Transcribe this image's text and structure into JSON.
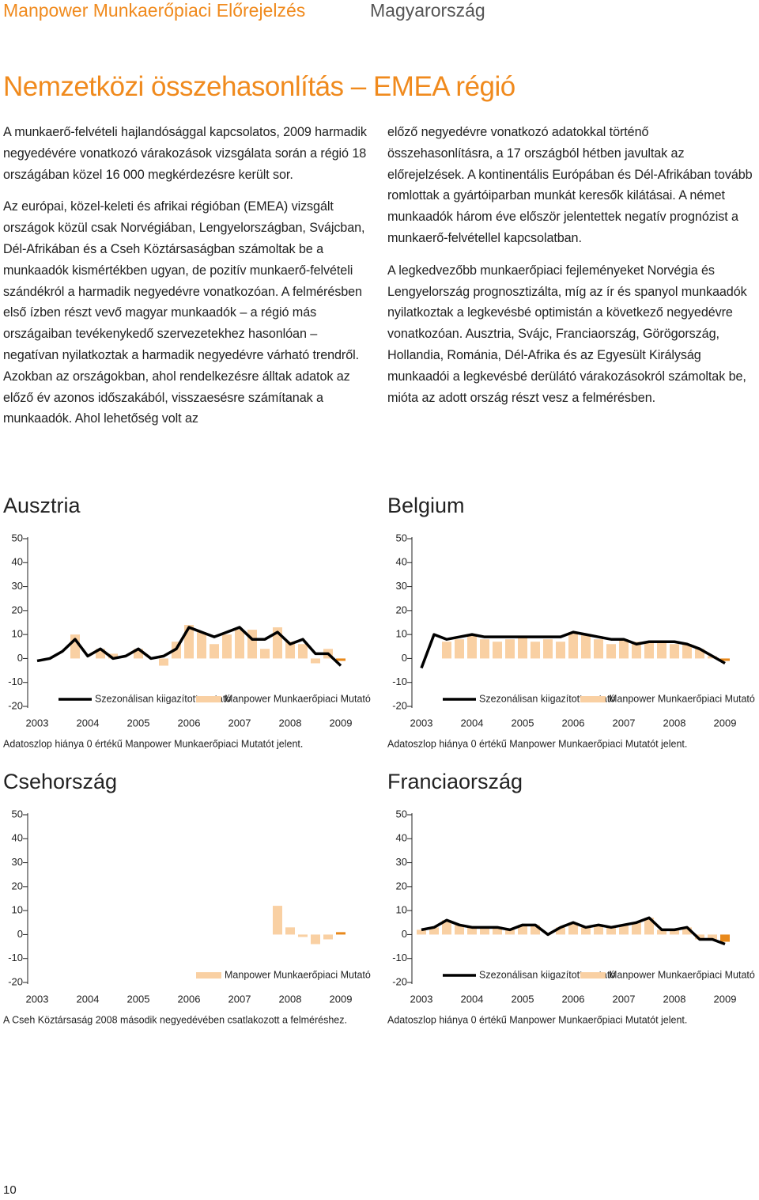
{
  "header": {
    "brand": "Manpower Munkaerőpiaci Előrejelzés",
    "country": "Magyarország"
  },
  "title": "Nemzetközi összehasonlítás – EMEA régió",
  "left_paragraphs": [
    "A munkaerő-felvételi hajlandósággal kapcsolatos, 2009 harmadik negyedévére vonatkozó várakozások vizsgálata során a régió 18 országában közel 16 000 megkérdezésre került sor.",
    "Az európai, közel-keleti és afrikai régióban (EMEA) vizsgált országok közül csak Norvégiában, Lengyelországban, Svájcban, Dél-Afrikában és a Cseh Köztársaságban számoltak be a munkaadók kismértékben ugyan, de pozitív munkaerő-felvételi szándékról a harmadik negyedévre vonatkozóan. A felmérésben első ízben részt vevő magyar munkaadók – a régió más országaiban tevékenykedő szervezetekhez hasonlóan – negatívan nyilatkoztak a harmadik negyedévre várható trendről. Azokban az országokban, ahol rendelkezésre álltak adatok az előző év azonos időszakából, visszaesésre számítanak a munkaadók. Ahol lehetőség volt az"
  ],
  "right_paragraphs": [
    "előző negyedévre vonatkozó adatokkal történő összehasonlításra, a 17 országból hétben javultak az előrejelzések. A kontinentális Európában és Dél-Afrikában tovább romlottak a gyártóiparban munkát keresők kilátásai. A német munkaadók három éve először jelentettek negatív prognózist a munkaerő-felvétellel kapcsolatban.",
    "A legkedvezőbb munkaerőpiaci fejleményeket Norvégia és Lengyelország prognosztizálta, míg az ír és spanyol munkaadók nyilatkoztak a legkevésbé optimistán a következő negyedévre vonatkozóan. Ausztria, Svájc, Franciaország, Görögország, Hollandia, Románia, Dél-Afrika és az Egyesült Királyság munkaadói a legkevésbé derülátó várakozásokról számoltak be, mióta az adott ország részt vesz a felmérésben."
  ],
  "chart_data": [
    {
      "type": "bar_line",
      "title": "Ausztria",
      "x": [
        2003,
        2003.25,
        2003.5,
        2003.75,
        2004,
        2004.25,
        2004.5,
        2004.75,
        2005,
        2005.25,
        2005.5,
        2005.75,
        2006,
        2006.25,
        2006.5,
        2006.75,
        2007,
        2007.25,
        2007.5,
        2007.75,
        2008,
        2008.25,
        2008.5,
        2008.75,
        2009
      ],
      "series": [
        {
          "name": "Szezonálisan kiigazított mutató",
          "kind": "line",
          "color": "#000000",
          "values": [
            -1,
            0,
            3,
            8,
            1,
            4,
            0,
            1,
            4,
            0,
            1,
            4,
            13,
            11,
            9,
            11,
            13,
            8,
            8,
            11,
            6,
            8,
            2,
            2,
            -3
          ]
        },
        {
          "name": "Manpower Munkaerőpiaci Mutató",
          "kind": "bar",
          "color": "#f9d0a3",
          "highlight_color": "#e8891c",
          "values": [
            0,
            0,
            0,
            10,
            0,
            4,
            2,
            0,
            4,
            0,
            -3,
            7,
            14,
            11,
            6,
            10,
            12,
            12,
            4,
            13,
            7,
            6,
            -2,
            4,
            -1
          ]
        }
      ],
      "xlim": [
        2003,
        2009
      ],
      "xticks": [
        2003,
        2004,
        2005,
        2006,
        2007,
        2008,
        2009
      ],
      "ylim": [
        -20,
        50
      ],
      "yticks": [
        -20,
        -10,
        0,
        10,
        20,
        30,
        40,
        50
      ],
      "grid": false,
      "highlight_last": true,
      "note": "Adatoszlop hiánya 0 értékű Manpower Munkaerőpiaci Mutatót jelent."
    },
    {
      "type": "bar_line",
      "title": "Belgium",
      "x": [
        2003,
        2003.25,
        2003.5,
        2003.75,
        2004,
        2004.25,
        2004.5,
        2004.75,
        2005,
        2005.25,
        2005.5,
        2005.75,
        2006,
        2006.25,
        2006.5,
        2006.75,
        2007,
        2007.25,
        2007.5,
        2007.75,
        2008,
        2008.25,
        2008.5,
        2008.75,
        2009
      ],
      "series": [
        {
          "name": "Szezonálisan kiigazított mutató",
          "kind": "line",
          "color": "#000000",
          "values": [
            -4,
            10,
            8,
            9,
            10,
            9,
            9,
            9,
            9,
            9,
            9,
            9,
            11,
            10,
            9,
            8,
            8,
            6,
            7,
            7,
            7,
            6,
            4,
            1,
            -2
          ]
        },
        {
          "name": "Manpower Munkaerőpiaci Mutató",
          "kind": "bar",
          "color": "#f9d0a3",
          "highlight_color": "#e8891c",
          "values": [
            0,
            0,
            7,
            8,
            10,
            8,
            7,
            8,
            9,
            7,
            8,
            7,
            11,
            10,
            8,
            6,
            8,
            7,
            7,
            7,
            6,
            6,
            4,
            1,
            -1
          ]
        }
      ],
      "xlim": [
        2003,
        2009
      ],
      "xticks": [
        2003,
        2004,
        2005,
        2006,
        2007,
        2008,
        2009
      ],
      "ylim": [
        -20,
        50
      ],
      "yticks": [
        -20,
        -10,
        0,
        10,
        20,
        30,
        40,
        50
      ],
      "grid": false,
      "highlight_last": true,
      "note": "Adatoszlop hiánya 0 értékű Manpower Munkaerőpiaci Mutatót jelent."
    },
    {
      "type": "bar_line",
      "title": "Csehország",
      "x": [
        2003,
        2003.25,
        2003.5,
        2003.75,
        2004,
        2004.25,
        2004.5,
        2004.75,
        2005,
        2005.25,
        2005.5,
        2005.75,
        2006,
        2006.25,
        2006.5,
        2006.75,
        2007,
        2007.25,
        2007.5,
        2007.75,
        2008,
        2008.25,
        2008.5,
        2008.75,
        2009
      ],
      "series": [
        {
          "name": "Manpower Munkaerőpiaci Mutató",
          "kind": "bar",
          "color": "#f9d0a3",
          "highlight_color": "#e8891c",
          "values": [
            null,
            null,
            null,
            null,
            null,
            null,
            null,
            null,
            null,
            null,
            null,
            null,
            null,
            null,
            null,
            null,
            null,
            null,
            null,
            12,
            3,
            -1,
            -4,
            -2,
            1
          ]
        }
      ],
      "xlim": [
        2003,
        2009
      ],
      "xticks": [
        2003,
        2004,
        2005,
        2006,
        2007,
        2008,
        2009
      ],
      "ylim": [
        -20,
        50
      ],
      "yticks": [
        -20,
        -10,
        0,
        10,
        20,
        30,
        40,
        50
      ],
      "grid": false,
      "highlight_last": true,
      "note": "A Cseh Köztársaság 2008 második negyedévében csatlakozott a felméréshez."
    },
    {
      "type": "bar_line",
      "title": "Franciaország",
      "x": [
        2003,
        2003.25,
        2003.5,
        2003.75,
        2004,
        2004.25,
        2004.5,
        2004.75,
        2005,
        2005.25,
        2005.5,
        2005.75,
        2006,
        2006.25,
        2006.5,
        2006.75,
        2007,
        2007.25,
        2007.5,
        2007.75,
        2008,
        2008.25,
        2008.5,
        2008.75,
        2009
      ],
      "series": [
        {
          "name": "Szezonálisan kiigazított mutató",
          "kind": "line",
          "color": "#000000",
          "values": [
            2,
            3,
            6,
            4,
            3,
            3,
            3,
            2,
            4,
            4,
            0,
            3,
            5,
            3,
            4,
            3,
            4,
            5,
            7,
            2,
            2,
            3,
            -2,
            -2,
            -4
          ]
        },
        {
          "name": "Manpower Munkaerőpiaci Mutató",
          "kind": "bar",
          "color": "#f9d0a3",
          "highlight_color": "#e8891c",
          "values": [
            2,
            3,
            6,
            4,
            3,
            3,
            3,
            2,
            4,
            4,
            0,
            3,
            5,
            3,
            4,
            3,
            4,
            5,
            7,
            2,
            2,
            3,
            -2,
            -2,
            -3
          ]
        }
      ],
      "xlim": [
        2003,
        2009
      ],
      "xticks": [
        2003,
        2004,
        2005,
        2006,
        2007,
        2008,
        2009
      ],
      "ylim": [
        -20,
        50
      ],
      "yticks": [
        -20,
        -10,
        0,
        10,
        20,
        30,
        40,
        50
      ],
      "grid": false,
      "highlight_last": true,
      "note": "Adatoszlop hiánya 0 értékű Manpower Munkaerőpiaci Mutatót jelent."
    }
  ],
  "page_number": "10"
}
